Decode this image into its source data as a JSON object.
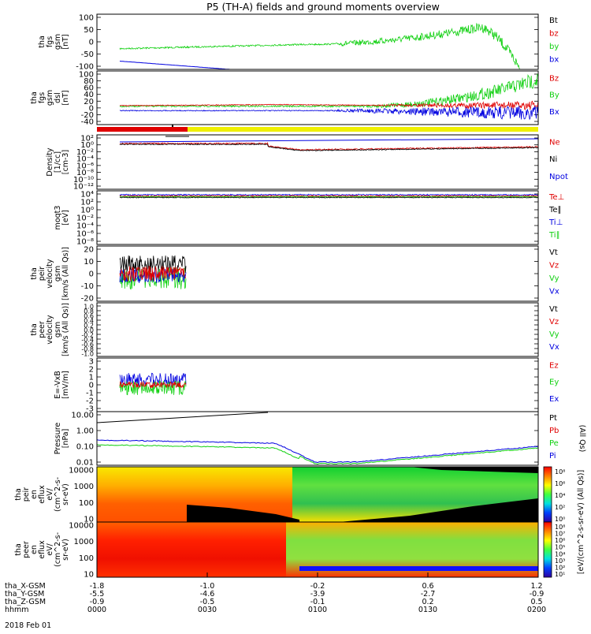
{
  "title": "P5 (TH-A) fields and ground moments overview",
  "colors": {
    "black": "#000000",
    "red": "#e00000",
    "green": "#10d010",
    "blue": "#0000e0",
    "yellow": "#f0f000"
  },
  "chart_data": [
    {
      "type": "line",
      "name": "fgs_gsm",
      "ylabel": [
        "tha",
        "fgs",
        "gsm",
        "[nT]"
      ],
      "ylim": [
        -100,
        100
      ],
      "yticks": [
        "100",
        "50",
        "0",
        "-50",
        "-100"
      ],
      "legend": [
        {
          "name": "Bt",
          "color": "black"
        },
        {
          "name": "bz",
          "color": "red"
        },
        {
          "name": "by",
          "color": "green"
        },
        {
          "name": "bx",
          "color": "blue"
        }
      ]
    },
    {
      "type": "line",
      "name": "fgs_gsm_dsl",
      "ylabel": [
        "tha",
        "fgs",
        "gsm",
        "dsl",
        "[nT]"
      ],
      "ylim": [
        -50,
        110
      ],
      "yticks": [
        "100",
        "80",
        "60",
        "40",
        "20",
        "0",
        "-20",
        "-40"
      ],
      "legend": [
        {
          "name": "Bz",
          "color": "red"
        },
        {
          "name": "By",
          "color": "green"
        },
        {
          "name": "Bx",
          "color": "blue"
        }
      ]
    },
    {
      "type": "line",
      "name": "density",
      "ylabel": [
        "Density",
        "[1/cc]",
        "[cm-3]"
      ],
      "scale": "log",
      "yticks": [
        "10²",
        "10⁰",
        "10⁻²",
        "10⁻⁴",
        "10⁻⁶",
        "10⁻⁸",
        "10⁻¹⁰",
        "10⁻¹²"
      ],
      "legend": [
        {
          "name": "Ne",
          "color": "red"
        },
        {
          "name": "Ni",
          "color": "black"
        },
        {
          "name": "Npot",
          "color": "blue"
        }
      ]
    },
    {
      "type": "line",
      "name": "temperature",
      "ylabel": [
        "moqt3",
        "[eV]"
      ],
      "scale": "log",
      "yticks": [
        "10⁴",
        "10²",
        "10⁰",
        "10⁻²",
        "10⁻⁴",
        "10⁻⁶",
        "10⁻⁸"
      ],
      "legend": [
        {
          "name": "Te⊥",
          "color": "red"
        },
        {
          "name": "Te∥",
          "color": "black"
        },
        {
          "name": "Ti⊥",
          "color": "blue"
        },
        {
          "name": "Ti∥",
          "color": "green"
        }
      ]
    },
    {
      "type": "line",
      "name": "peir_velocity",
      "ylabel": [
        "tha",
        "peir",
        "velocity",
        "gsm",
        "[km/s (All Qs)]"
      ],
      "ylim": [
        -20,
        20
      ],
      "yticks": [
        "20",
        "10",
        "0",
        "-10",
        "-20"
      ],
      "legend": [
        {
          "name": "Vt",
          "color": "black"
        },
        {
          "name": "Vz",
          "color": "red"
        },
        {
          "name": "Vy",
          "color": "green"
        },
        {
          "name": "Vx",
          "color": "blue"
        }
      ]
    },
    {
      "type": "line",
      "name": "peer_velocity",
      "ylabel": [
        "tha",
        "peer",
        "velocity",
        "gsm",
        "[km/s (All Qs)]"
      ],
      "ylim": [
        -1,
        1
      ],
      "yticks": [
        "1.0",
        "0.8",
        "0.6",
        "0.4",
        "0.2",
        "0.0",
        "-0.2",
        "-0.4",
        "-0.6",
        "-0.8",
        "-1.0"
      ],
      "legend": [
        {
          "name": "Vt",
          "color": "black"
        },
        {
          "name": "Vz",
          "color": "red"
        },
        {
          "name": "Vy",
          "color": "green"
        },
        {
          "name": "Vx",
          "color": "blue"
        }
      ]
    },
    {
      "type": "line",
      "name": "efield",
      "ylabel": [
        "E=-VxB",
        "[mV/m]"
      ],
      "ylim": [
        -3,
        3
      ],
      "yticks": [
        "3",
        "2",
        "1",
        "0",
        "-1",
        "-2",
        "-3"
      ],
      "legend": [
        {
          "name": "Ez",
          "color": "red"
        },
        {
          "name": "Ey",
          "color": "green"
        },
        {
          "name": "Ex",
          "color": "blue"
        }
      ]
    },
    {
      "type": "line",
      "name": "pressure",
      "ylabel": [
        "Pressure",
        "[nPa]"
      ],
      "scale": "log",
      "yticks": [
        "10.00",
        "1.00",
        "0.10",
        "0.01"
      ],
      "legend": [
        {
          "name": "Pt",
          "color": "black"
        },
        {
          "name": "Pb",
          "color": "red"
        },
        {
          "name": "Pe",
          "color": "green"
        },
        {
          "name": "Pi",
          "color": "blue"
        }
      ],
      "legend_note": "(All Qs)"
    },
    {
      "type": "heatmap",
      "name": "peir_en_eflux",
      "ylabel": [
        "tha",
        "peir",
        "en",
        "eflux",
        "eV/",
        "(cm^2-s-",
        "sr-eV)"
      ],
      "scale": "log",
      "yticks": [
        "10000",
        "1000",
        "100",
        "10"
      ]
    },
    {
      "type": "heatmap",
      "name": "peer_en_eflux",
      "ylabel": [
        "tha",
        "peer",
        "en",
        "eflux",
        "eV/",
        "(cm^2-s-",
        "sr-eV)"
      ],
      "scale": "log",
      "yticks": [
        "10000",
        "1000",
        "100",
        "10"
      ]
    }
  ],
  "colorbar": {
    "label": "[eV/(cm^2-s-sr-eV) (All Qs)]",
    "ticks_top": [
      "10⁸",
      "10⁶",
      "10⁴",
      "10²",
      "10⁰"
    ],
    "ticks_bottom": [
      "10⁸",
      "10⁷",
      "10⁶",
      "10⁵",
      "10⁴",
      "10³",
      "10²",
      "10¹"
    ]
  },
  "xaxis": {
    "rows": [
      {
        "label": "tha_X-GSM",
        "values": [
          "-1.8",
          "-1.0",
          "-0.2",
          "0.6",
          "1.2"
        ]
      },
      {
        "label": "tha_Y-GSM",
        "values": [
          "-5.5",
          "-4.6",
          "-3.9",
          "-2.7",
          "-0.9"
        ]
      },
      {
        "label": "tha_Z-GSM",
        "values": [
          "-0.9",
          "-0.5",
          "-0.1",
          "0.2",
          "0.5"
        ]
      },
      {
        "label": "hhmm",
        "values": [
          "0000",
          "0030",
          "0100",
          "0130",
          "0200"
        ]
      }
    ],
    "date": "2018 Feb 01"
  }
}
